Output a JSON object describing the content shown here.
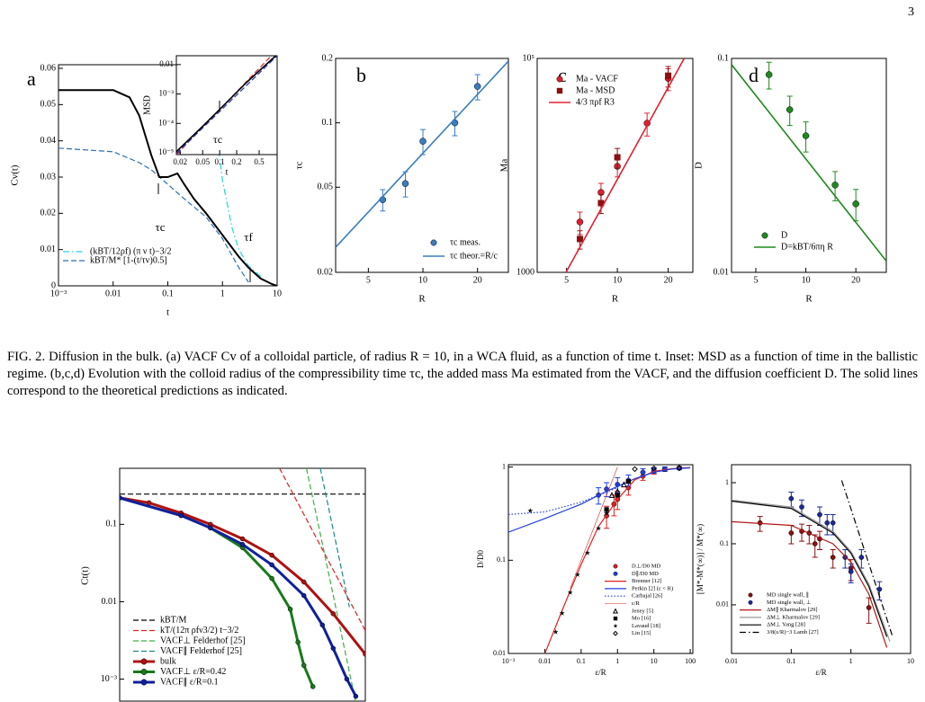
{
  "page_number": "3",
  "caption": "FIG. 2. Diffusion in the bulk. (a) VACF Cv of a colloidal particle, of radius R = 10, in a WCA fluid, as a function of time t. Inset: MSD as a function of time in the ballistic regime. (b,c,d) Evolution with the colloid radius of the compressibility time τc, the added mass Ma estimated from the VACF, and the diffusion coefficient D. The solid lines correspond to the theoretical predictions as indicated.",
  "chart_data": [
    {
      "type": "line",
      "panel": "a",
      "xlabel": "t",
      "ylabel": "Cv(t)",
      "xscale": "log",
      "xlim": [
        0.001,
        10
      ],
      "ylim": [
        0,
        0.061
      ],
      "xticks": [
        {
          "value": 0.001,
          "label": "10⁻³"
        },
        0.01,
        0.1,
        1,
        10
      ],
      "yticks": [
        0,
        0.01,
        0.02,
        0.03,
        0.04,
        0.05,
        0.06
      ],
      "annotations": [
        "τc",
        "τf"
      ],
      "series": [
        {
          "name": "(kBT/12ρf) (π ν t)−3/2",
          "color": "#22d3e6",
          "style": "dash-dot",
          "x": [
            0.8,
            1,
            1.5,
            2,
            3,
            5
          ],
          "values": [
            0.041,
            0.029,
            0.016,
            0.01,
            0.0055,
            0.0026
          ]
        },
        {
          "name": "kBT/M* [1-(t/τv)0.5]",
          "color": "#2a6fb0",
          "style": "dashed",
          "x": [
            0.001,
            0.01,
            0.03,
            0.05,
            0.1,
            0.2,
            0.5,
            1,
            2,
            3
          ],
          "values": [
            0.038,
            0.037,
            0.034,
            0.032,
            0.028,
            0.024,
            0.019,
            0.013,
            0.005,
            0.001
          ]
        },
        {
          "color": "#000000",
          "style": "solid",
          "width": 2,
          "x": [
            0.001,
            0.01,
            0.02,
            0.03,
            0.05,
            0.07,
            0.1,
            0.15,
            0.2,
            0.3,
            0.5,
            1,
            2,
            3,
            5,
            8,
            10
          ],
          "values": [
            0.054,
            0.054,
            0.052,
            0.047,
            0.036,
            0.03,
            0.03,
            0.031,
            0.028,
            0.024,
            0.02,
            0.014,
            0.008,
            0.005,
            0.002,
            0.0005,
            0
          ]
        }
      ]
    },
    {
      "type": "line",
      "xlabel": "t",
      "ylabel": "MSD",
      "xscale": "log",
      "yscale": "log",
      "xlim": [
        0.0171,
        1.04
      ],
      "ylim": [
        8.7e-06,
        0.02
      ],
      "xticks": [
        0.02,
        0.05,
        0.1,
        0.2,
        0.5
      ],
      "yticks": [
        {
          "value": 1e-05,
          "label": "10⁻⁵"
        },
        {
          "value": 0.0001,
          "label": "10⁻⁴"
        },
        {
          "value": 0.001,
          "label": "10⁻³"
        },
        0.01
      ],
      "annotations": [
        "τc"
      ],
      "series": [
        {
          "color": "#e02020",
          "style": "dashed",
          "x": [
            0.0171,
            1.04
          ],
          "values": [
            8.7e-06,
            0.032
          ]
        },
        {
          "color": "#2030c0",
          "style": "dashed",
          "x": [
            0.0171,
            1.04
          ],
          "values": [
            9.5e-06,
            0.02
          ]
        },
        {
          "color": "#000000",
          "style": "solid",
          "width": 1.6,
          "x": [
            0.0171,
            0.05,
            0.1,
            0.3,
            1.04
          ],
          "values": [
            1.1e-05,
            8e-05,
            0.0003,
            0.0025,
            0.022
          ]
        }
      ]
    },
    {
      "type": "scatter",
      "panel": "b",
      "xlabel": "R",
      "ylabel": "τc",
      "xscale": "log",
      "yscale": "log",
      "xlim": [
        3.3,
        29.6
      ],
      "ylim": [
        0.02,
        0.2
      ],
      "xticks": [
        5,
        10,
        20
      ],
      "yticks": [
        0.02,
        0.05,
        0.1,
        0.2
      ],
      "series": [
        {
          "name": "τc meas.",
          "color": "#3a7dc0",
          "marker": "circle",
          "x": [
            6,
            8,
            10,
            15,
            20
          ],
          "values": [
            0.0437,
            0.052,
            0.082,
            0.1,
            0.148
          ],
          "errors": [
            0.005,
            0.007,
            0.011,
            0.013,
            0.02
          ]
        },
        {
          "name": "τc theor.=R/c",
          "color": "#3a7dc0",
          "style": "solid",
          "width": 1.6,
          "x": [
            3.3,
            29.6
          ],
          "values": [
            0.0262,
            0.194
          ]
        }
      ]
    },
    {
      "type": "scatter",
      "panel": "c",
      "xlabel": "R",
      "ylabel": "Ma",
      "xscale": "log",
      "yscale": "log",
      "xlim": [
        3.35,
        28
      ],
      "ylim": [
        1000,
        100000
      ],
      "xticks": [
        5,
        10,
        20
      ],
      "yticks": [
        1000,
        {
          "value": 100000,
          "label": "10⁵"
        }
      ],
      "series": [
        {
          "name": "Ma - VACF",
          "color": "#e02030",
          "marker": "circle",
          "x": [
            6,
            8,
            10,
            15,
            20
          ],
          "values": [
            2960,
            5590,
            9800,
            24800,
            65000
          ],
          "errors": [
            700,
            1200,
            2000,
            6000,
            15000
          ]
        },
        {
          "name": "Ma - MSD",
          "color": "#8b1010",
          "marker": "square",
          "x": [
            6,
            8,
            10,
            20
          ],
          "values": [
            2050,
            4440,
            11900,
            69000
          ],
          "errors": [
            400,
            900,
            2500,
            15000
          ]
        },
        {
          "name": "4/3 πρf R3",
          "color": "#e02030",
          "style": "solid",
          "width": 1.6,
          "x": [
            4.96,
            24.9
          ],
          "values": [
            1000,
            100000
          ]
        }
      ]
    },
    {
      "type": "scatter",
      "panel": "d",
      "xlabel": "R",
      "ylabel": "D",
      "xscale": "log",
      "yscale": "log",
      "xlim": [
        3.57,
        30.5
      ],
      "ylim": [
        0.01,
        0.1
      ],
      "xticks": [
        5,
        10,
        20
      ],
      "yticks": [
        0.01,
        0.1
      ],
      "series": [
        {
          "name": "D",
          "color": "#1f8a1f",
          "marker": "circle",
          "x": [
            6,
            8,
            10,
            15,
            20
          ],
          "values": [
            0.084,
            0.0576,
            0.0435,
            0.0256,
            0.0209
          ],
          "errors": [
            0.012,
            0.009,
            0.007,
            0.004,
            0.0035
          ]
        },
        {
          "name": "D=kBT/6πη R",
          "color": "#1f8a1f",
          "style": "solid",
          "width": 1.6,
          "x": [
            3.57,
            30.5
          ],
          "values": [
            0.0935,
            0.0113
          ]
        }
      ]
    },
    {
      "type": "line",
      "ylabel": "Ct(t)",
      "xscale": "log",
      "yscale": "log",
      "xlim": [
        0.01,
        100
      ],
      "ylim": [
        0.00052,
        0.53
      ],
      "yticks": [
        {
          "value": 0.001,
          "label": "10⁻³"
        },
        0.01,
        0.1
      ],
      "series": [
        {
          "name": "kBT/M",
          "color": "#000000",
          "style": "dashed",
          "x": [
            0.01,
            100
          ],
          "values": [
            0.246,
            0.246
          ]
        },
        {
          "name": "kT/(12π ρfν3/2) t−3/2",
          "color": "#e02020",
          "style": "dashed",
          "x": [
            3,
            10,
            30,
            100
          ],
          "values": [
            0.816,
            0.134,
            0.0258,
            0.00424
          ]
        },
        {
          "name": "VACF⊥ Felderhof [25]",
          "color": "#3cb043",
          "style": "dashed",
          "x": [
            11,
            70
          ],
          "values": [
            0.53,
            0.0005
          ]
        },
        {
          "name": "VACF∥ Felderhof [25]",
          "color": "#1a8a8a",
          "style": "dashed",
          "x": [
            18.5,
            55
          ],
          "values": [
            0.53,
            0.0085
          ]
        },
        {
          "name": "bulk",
          "color": "#b01010",
          "style": "solid",
          "width": 3,
          "marker": "circle",
          "x": [
            0.01,
            0.03,
            0.1,
            0.3,
            1,
            3,
            10,
            30,
            100
          ],
          "values": [
            0.22,
            0.19,
            0.14,
            0.1,
            0.065,
            0.04,
            0.018,
            0.007,
            0.0021
          ]
        },
        {
          "name": "VACF⊥ ε/R=0.42",
          "color": "#1a7a1a",
          "style": "solid",
          "width": 3,
          "marker": "circle",
          "x": [
            0.01,
            0.1,
            0.3,
            1,
            3,
            6,
            8,
            10,
            14
          ],
          "values": [
            0.22,
            0.13,
            0.09,
            0.05,
            0.02,
            0.008,
            0.003,
            0.0015,
            0.0008
          ]
        },
        {
          "name": "VACF∥ ε/R=0.1",
          "color": "#1020a0",
          "style": "solid",
          "width": 3,
          "marker": "circle",
          "x": [
            0.01,
            0.1,
            0.3,
            1,
            3,
            10,
            20,
            30,
            50,
            70
          ],
          "values": [
            0.22,
            0.13,
            0.09,
            0.055,
            0.03,
            0.012,
            0.005,
            0.0025,
            0.001,
            0.0006
          ]
        }
      ]
    },
    {
      "type": "scatter",
      "xlabel": "ε/R",
      "ylabel": "D/D0",
      "xscale": "log",
      "yscale": "log",
      "xlim": [
        0.001,
        118
      ],
      "ylim": [
        0.01,
        1.06
      ],
      "xticks": [
        {
          "value": 0.001,
          "label": "10⁻³"
        },
        0.01,
        0.1,
        1,
        10,
        100
      ],
      "yticks": [
        0.01,
        0.1,
        1
      ],
      "series": [
        {
          "name": "D⊥/D0 MD",
          "color": "#e02020",
          "marker": "circle",
          "x": [
            0.5,
            0.8,
            1,
            2,
            5,
            10,
            20,
            50
          ],
          "values": [
            0.3,
            0.4,
            0.45,
            0.6,
            0.8,
            0.9,
            0.95,
            0.98
          ],
          "errors": [
            0.08,
            0.1,
            0.1,
            0.1,
            0.08,
            0.06,
            0.05,
            0.03
          ]
        },
        {
          "name": "D∥/D0 MD",
          "color": "#2040e0",
          "marker": "circle",
          "x": [
            0.3,
            0.5,
            1,
            2,
            5,
            10,
            20,
            50
          ],
          "values": [
            0.5,
            0.58,
            0.65,
            0.72,
            0.88,
            0.92,
            0.95,
            0.97
          ],
          "errors": [
            0.1,
            0.1,
            0.12,
            0.1,
            0.08,
            0.06,
            0.05,
            0.03
          ]
        },
        {
          "name": "Brenner [12]",
          "color": "#e02020",
          "style": "solid",
          "x": [
            0.01,
            0.03,
            0.1,
            0.3,
            1,
            3,
            10,
            30,
            100
          ],
          "values": [
            0.0099,
            0.029,
            0.09,
            0.23,
            0.45,
            0.73,
            0.9,
            0.96,
            0.99
          ]
        },
        {
          "name": "Perkin [2] (ε < R)",
          "color": "#2040e0",
          "style": "solid",
          "x": [
            0.001,
            0.01,
            0.1,
            0.5,
            1,
            3,
            10,
            30,
            100
          ],
          "values": [
            0.2,
            0.28,
            0.4,
            0.55,
            0.62,
            0.75,
            0.88,
            0.95,
            0.98
          ]
        },
        {
          "name": "Carbajal [26]",
          "color": "#2040e0",
          "style": "dotted",
          "x": [
            0.001,
            0.01,
            0.1,
            1
          ],
          "values": [
            0.31,
            0.33,
            0.42,
            0.6
          ]
        },
        {
          "name": "ε/R",
          "color": "#e02020",
          "style": "thin",
          "x": [
            0.05,
            1
          ],
          "values": [
            0.05,
            1
          ]
        },
        {
          "name": "Jeney [5]",
          "color": "#000000",
          "marker": "triangle",
          "x": [
            0.7,
            1,
            1.5
          ],
          "values": [
            0.5,
            0.55,
            0.65
          ]
        },
        {
          "name": "Mo [16]",
          "color": "#000000",
          "marker": "square",
          "x": [
            0.5,
            1,
            2
          ],
          "values": [
            0.35,
            0.5,
            0.7
          ]
        },
        {
          "name": "Lavaud [18]",
          "color": "#000000",
          "marker": "star",
          "x": [
            0.004,
            0.02,
            0.03,
            0.05,
            0.08,
            0.15,
            0.3,
            0.5
          ],
          "values": [
            0.34,
            0.017,
            0.027,
            0.045,
            0.07,
            0.12,
            0.22,
            0.32
          ]
        },
        {
          "name": "Lin [15]",
          "color": "#000000",
          "marker": "diamond",
          "x": [
            3,
            10,
            50
          ],
          "values": [
            0.95,
            0.97,
            0.98
          ]
        }
      ]
    },
    {
      "type": "scatter",
      "xlabel": "ε/R",
      "ylabel": "[M*-M*(∞)] / M*(∞)",
      "xscale": "log",
      "yscale": "log",
      "xlim": [
        0.01,
        10
      ],
      "ylim": [
        0.0016,
        1.97
      ],
      "xticks": [
        0.01,
        0.1,
        1,
        10
      ],
      "yticks": [
        0.01,
        0.1,
        1
      ],
      "series": [
        {
          "name": "MD single wall, ∥",
          "color": "#8b1010",
          "marker": "circle",
          "x": [
            0.03,
            0.1,
            0.15,
            0.2,
            0.25,
            0.3,
            0.5,
            1,
            2
          ],
          "values": [
            0.22,
            0.15,
            0.16,
            0.15,
            0.1,
            0.12,
            0.06,
            0.04,
            0.009
          ],
          "errors": [
            0.06,
            0.05,
            0.05,
            0.05,
            0.04,
            0.04,
            0.02,
            0.015,
            0.004
          ]
        },
        {
          "name": "MD single wall, ⊥",
          "color": "#1a2a9a",
          "marker": "circle",
          "x": [
            0.1,
            0.15,
            0.3,
            0.4,
            0.5,
            0.8,
            1,
            1.5,
            3
          ],
          "values": [
            0.55,
            0.4,
            0.3,
            0.22,
            0.22,
            0.06,
            0.035,
            0.06,
            0.018
          ],
          "errors": [
            0.15,
            0.12,
            0.1,
            0.08,
            0.08,
            0.02,
            0.012,
            0.02,
            0.006
          ]
        },
        {
          "name": "ΔM∥ Kharmalov [29]",
          "color": "#b01818",
          "style": "solid",
          "x": [
            0.01,
            0.1,
            0.5,
            1,
            2,
            4
          ],
          "values": [
            0.23,
            0.2,
            0.1,
            0.05,
            0.015,
            0.002
          ]
        },
        {
          "name": "ΔM⊥ Kharmalov [29]",
          "color": "#999999",
          "style": "solid",
          "x": [
            0.01,
            0.1,
            0.5,
            1,
            2,
            4.5
          ],
          "values": [
            0.52,
            0.4,
            0.16,
            0.075,
            0.022,
            0.0025
          ]
        },
        {
          "name": "ΔM⊥ Yang [28]",
          "color": "#000000",
          "style": "solid",
          "x": [
            0.01,
            0.1,
            0.5,
            1,
            2,
            4
          ],
          "values": [
            0.5,
            0.38,
            0.15,
            0.07,
            0.02,
            0.003
          ]
        },
        {
          "name": "3/8(ε/R)−3 Lamb [27]",
          "color": "#000000",
          "style": "dash-dot",
          "x": [
            0.7,
            1,
            2,
            4,
            5
          ],
          "values": [
            1.09,
            0.375,
            0.047,
            0.0059,
            0.003
          ]
        }
      ]
    }
  ]
}
